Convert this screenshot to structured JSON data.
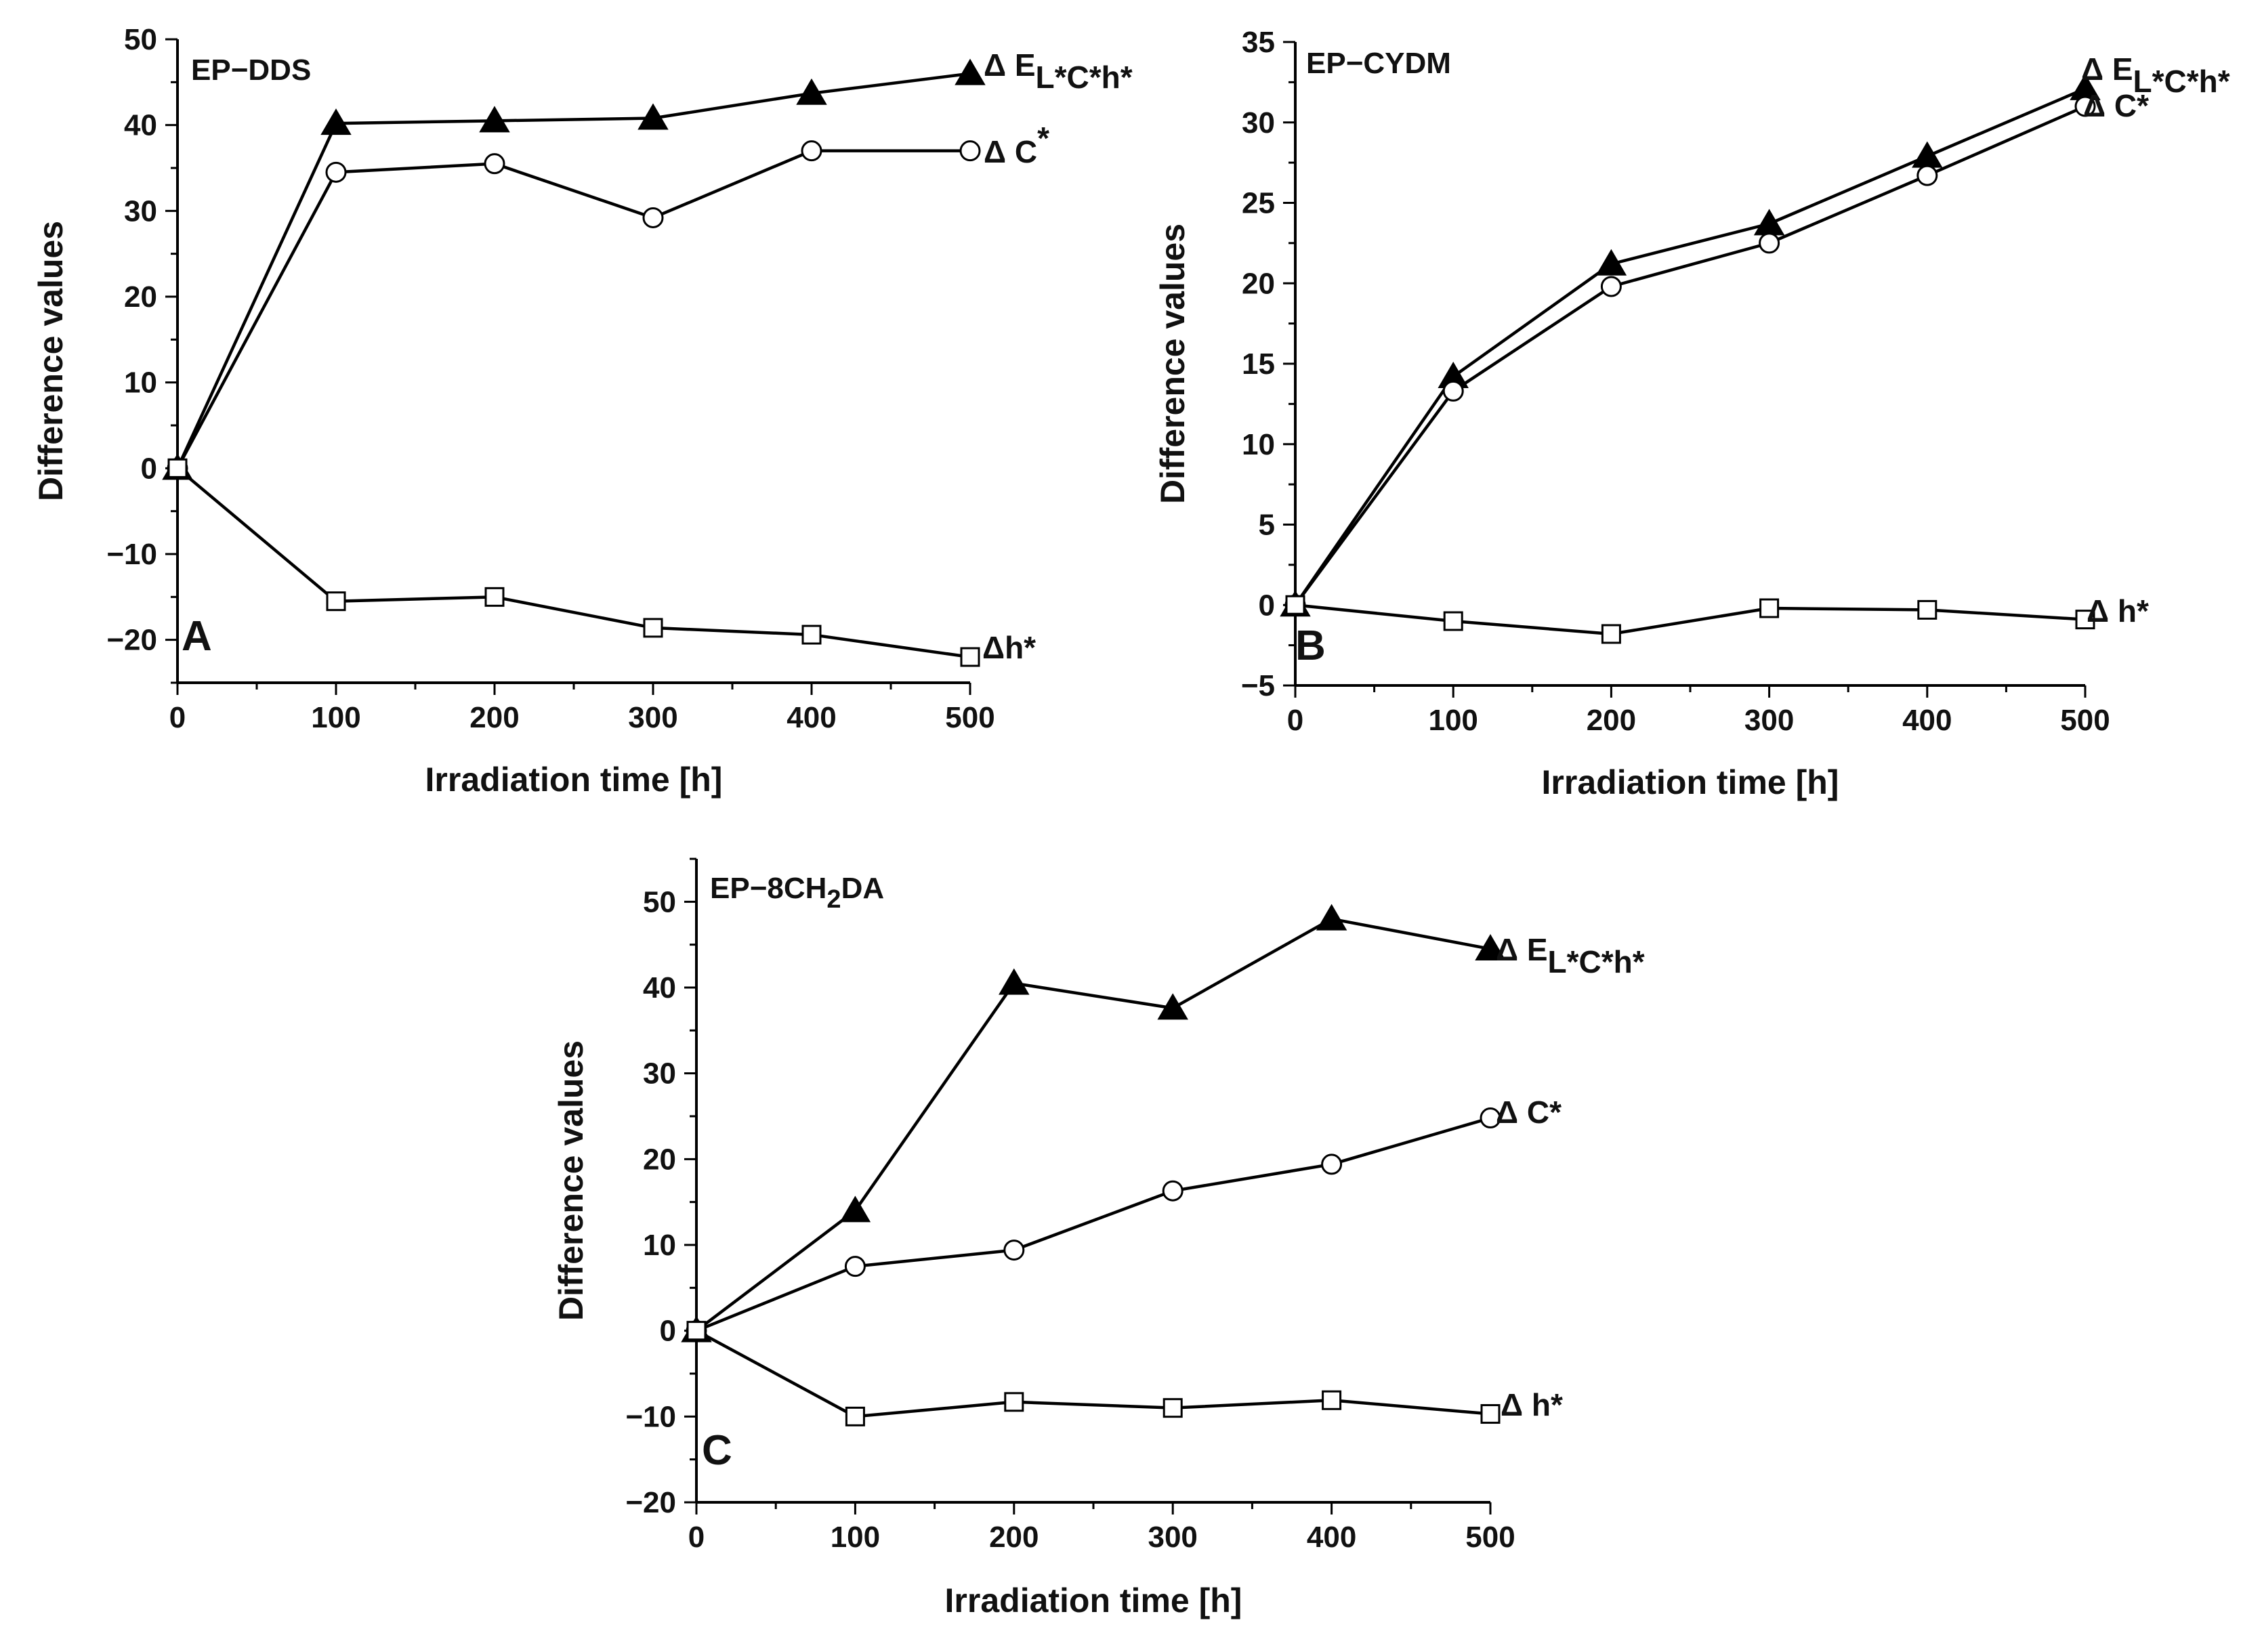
{
  "chart_data": [
    {
      "type": "line",
      "panel_label": "A",
      "title_prefix": "EP−DDS",
      "title_sub": "",
      "title_suffix": "",
      "xlabel": "Irradiation time [h]",
      "ylabel": "Difference values",
      "x": [
        0,
        100,
        200,
        300,
        400,
        500
      ],
      "xlim": [
        0,
        500
      ],
      "ylim": [
        -25,
        50
      ],
      "xticks": [
        0,
        100,
        200,
        300,
        400,
        500
      ],
      "yticks": [
        -20,
        -10,
        0,
        10,
        20,
        30,
        40,
        50
      ],
      "series": [
        {
          "name": "ΔE L*C*h*",
          "marker": "filled-triangle",
          "values": [
            0,
            40.2,
            40.5,
            40.8,
            43.7,
            46.0
          ],
          "label_main": "Δ E",
          "label_sub": "L*C*h*",
          "label_sup": ""
        },
        {
          "name": "ΔC*",
          "marker": "open-circle",
          "values": [
            0,
            34.5,
            35.5,
            29.2,
            37.0,
            37.0
          ],
          "label_main": "Δ C",
          "label_sub": "",
          "label_sup": "*"
        },
        {
          "name": "Δh*",
          "marker": "open-square",
          "values": [
            0,
            -15.5,
            -15.0,
            -18.6,
            -19.4,
            -22.0
          ],
          "label_main": "Δh*",
          "label_sub": "",
          "label_sup": ""
        }
      ]
    },
    {
      "type": "line",
      "panel_label": "B",
      "title_prefix": "EP−CYDM",
      "title_sub": "",
      "title_suffix": "",
      "xlabel": "Irradiation time [h]",
      "ylabel": "Difference values",
      "x": [
        0,
        100,
        200,
        300,
        400,
        500
      ],
      "xlim": [
        0,
        500
      ],
      "ylim": [
        -5,
        35
      ],
      "xticks": [
        0,
        100,
        200,
        300,
        400,
        500
      ],
      "yticks": [
        -5,
        0,
        5,
        10,
        15,
        20,
        25,
        30,
        35
      ],
      "series": [
        {
          "name": "ΔE L*C*h*",
          "marker": "filled-triangle",
          "values": [
            0,
            14.2,
            21.2,
            23.7,
            27.9,
            32.1
          ],
          "label_main": "Δ E",
          "label_sub": "L*C*h*",
          "label_sup": ""
        },
        {
          "name": "ΔC*",
          "marker": "open-circle",
          "values": [
            0,
            13.3,
            19.8,
            22.5,
            26.7,
            31.0
          ],
          "label_main": "Δ C*",
          "label_sub": "",
          "label_sup": ""
        },
        {
          "name": "Δh*",
          "marker": "open-square",
          "values": [
            0,
            -1.0,
            -1.8,
            -0.2,
            -0.3,
            -0.9
          ],
          "label_main": "Δ h*",
          "label_sub": "",
          "label_sup": ""
        }
      ]
    },
    {
      "type": "line",
      "panel_label": "C",
      "title_prefix": "EP−8CH",
      "title_sub": "2",
      "title_suffix": "DA",
      "xlabel": "Irradiation time [h]",
      "ylabel": "Difference values",
      "x": [
        0,
        100,
        200,
        300,
        400,
        500
      ],
      "xlim": [
        0,
        500
      ],
      "ylim": [
        -20,
        55
      ],
      "xticks": [
        0,
        100,
        200,
        300,
        400,
        500
      ],
      "yticks": [
        -20,
        -10,
        0,
        10,
        20,
        30,
        40,
        50
      ],
      "series": [
        {
          "name": "ΔE L*C*h*",
          "marker": "filled-triangle",
          "values": [
            0,
            14.0,
            40.5,
            37.6,
            48.0,
            44.5
          ],
          "label_main": "Δ E",
          "label_sub": "L*C*h*",
          "label_sup": ""
        },
        {
          "name": "ΔC*",
          "marker": "open-circle",
          "values": [
            0,
            7.5,
            9.4,
            16.3,
            19.4,
            24.8
          ],
          "label_main": "Δ C*",
          "label_sub": "",
          "label_sup": ""
        },
        {
          "name": "Δh*",
          "marker": "open-square",
          "values": [
            0,
            -10.0,
            -8.3,
            -9.0,
            -8.1,
            -9.7
          ],
          "label_main": "Δ h*",
          "label_sub": "",
          "label_sup": ""
        }
      ]
    }
  ]
}
